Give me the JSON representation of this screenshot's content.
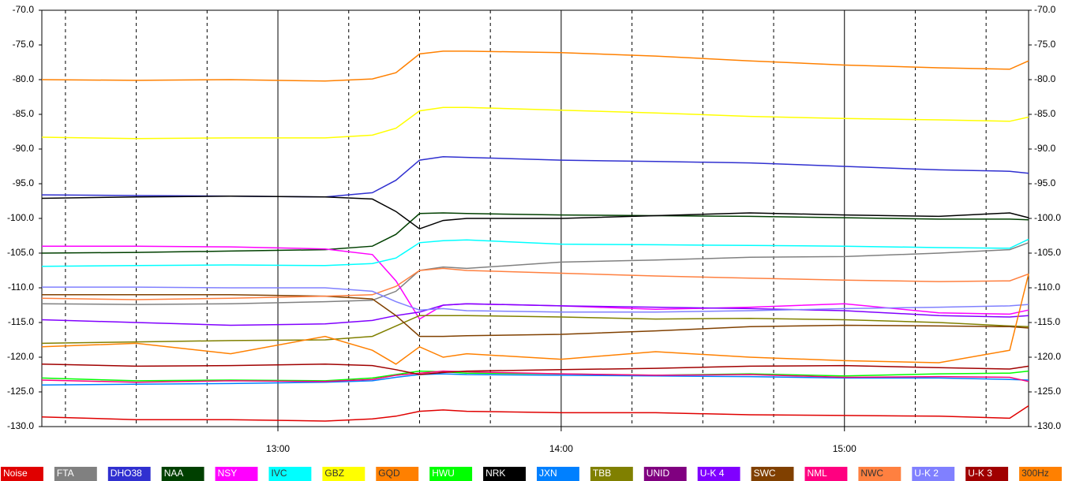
{
  "chart_data": {
    "type": "line",
    "x": [
      "12:10",
      "12:30",
      "12:50",
      "13:10",
      "13:20",
      "13:25",
      "13:30",
      "13:35",
      "13:40",
      "14:00",
      "14:20",
      "14:40",
      "15:00",
      "15:20",
      "15:35",
      "15:39"
    ],
    "xlim": [
      "12:10",
      "15:39"
    ],
    "xticks": [
      "13:00",
      "14:00",
      "15:00"
    ],
    "minor_xticks": [
      "12:15",
      "12:30",
      "12:45",
      "13:15",
      "13:30",
      "13:45",
      "14:15",
      "14:30",
      "14:45",
      "15:15",
      "15:30"
    ],
    "ylim": [
      -70,
      -130
    ],
    "yticks": [
      {
        "value": -70,
        "label": "-70.0"
      },
      {
        "value": -75,
        "label": "-75.0"
      },
      {
        "value": -80,
        "label": "-80.0"
      },
      {
        "value": -85,
        "label": "-85.0"
      },
      {
        "value": -90,
        "label": "-90.0"
      },
      {
        "value": -95,
        "label": "-95.0"
      },
      {
        "value": -100,
        "label": "-100.0"
      },
      {
        "value": -105,
        "label": "-105.0"
      },
      {
        "value": -110,
        "label": "-110.0"
      },
      {
        "value": -115,
        "label": "-115.0"
      },
      {
        "value": -120,
        "label": "-120.0"
      },
      {
        "value": -125,
        "label": "-125.0"
      },
      {
        "value": -130,
        "label": "-130.0"
      }
    ],
    "series": [
      {
        "name": "Noise",
        "color": "#e00000",
        "values": [
          -128.6,
          -129.0,
          -129.0,
          -129.2,
          -128.9,
          -128.5,
          -127.8,
          -127.6,
          -127.8,
          -128.0,
          -128.0,
          -128.3,
          -128.4,
          -128.5,
          -128.8,
          -127.0
        ]
      },
      {
        "name": "FTA",
        "color": "#808080",
        "values": [
          -112.3,
          -112.4,
          -112.3,
          -112.0,
          -111.8,
          -110.5,
          -107.5,
          -107.0,
          -107.2,
          -106.3,
          -106.0,
          -105.6,
          -105.5,
          -105.0,
          -104.5,
          -103.5
        ]
      },
      {
        "name": "DHO38",
        "color": "#3030d0",
        "values": [
          -96.6,
          -96.7,
          -96.8,
          -96.9,
          -96.3,
          -94.5,
          -91.6,
          -91.1,
          -91.2,
          -91.6,
          -91.8,
          -92.0,
          -92.5,
          -93.0,
          -93.2,
          -93.5
        ]
      },
      {
        "name": "NAA",
        "color": "#004000",
        "values": [
          -105.0,
          -104.9,
          -104.7,
          -104.5,
          -104.0,
          -102.3,
          -99.3,
          -99.2,
          -99.3,
          -99.5,
          -99.6,
          -99.7,
          -99.9,
          -100.1,
          -100.1,
          -100.2
        ]
      },
      {
        "name": "NSY",
        "color": "#ff00ff",
        "values": [
          -104.0,
          -104.0,
          -104.1,
          -104.4,
          -105.2,
          -109.0,
          -114.5,
          -112.5,
          -112.3,
          -112.6,
          -113.1,
          -112.8,
          -112.3,
          -113.6,
          -113.8,
          -113.2
        ]
      },
      {
        "name": "IVC",
        "color": "#00ffff",
        "values": [
          -106.9,
          -106.8,
          -106.7,
          -106.8,
          -106.5,
          -105.7,
          -103.5,
          -103.2,
          -103.1,
          -103.7,
          -103.8,
          -103.9,
          -104.0,
          -104.2,
          -104.3,
          -103.0
        ]
      },
      {
        "name": "GBZ",
        "color": "#ffff00",
        "values": [
          -88.3,
          -88.5,
          -88.4,
          -88.4,
          -88.0,
          -87.0,
          -84.5,
          -84.0,
          -84.0,
          -84.4,
          -84.8,
          -85.3,
          -85.6,
          -85.8,
          -86.0,
          -85.4
        ]
      },
      {
        "name": "GQD",
        "color": "#ff8000",
        "values": [
          -80.0,
          -80.1,
          -80.0,
          -80.2,
          -79.9,
          -79.0,
          -76.3,
          -75.9,
          -75.9,
          -76.1,
          -76.6,
          -77.3,
          -77.9,
          -78.3,
          -78.5,
          -77.3
        ]
      },
      {
        "name": "HWU",
        "color": "#00ff00",
        "values": [
          -123.0,
          -123.4,
          -123.3,
          -123.4,
          -123.0,
          -122.5,
          -122.0,
          -122.1,
          -122.3,
          -122.4,
          -122.6,
          -122.4,
          -122.7,
          -122.4,
          -122.3,
          -122.0
        ]
      },
      {
        "name": "NRK",
        "color": "#000000",
        "values": [
          -97.1,
          -96.9,
          -96.8,
          -96.9,
          -97.2,
          -99.0,
          -101.5,
          -100.3,
          -100.0,
          -100.0,
          -99.6,
          -99.2,
          -99.5,
          -99.7,
          -99.2,
          -99.9
        ]
      },
      {
        "name": "JXN",
        "color": "#0080ff",
        "values": [
          -124.0,
          -123.9,
          -123.8,
          -123.6,
          -123.4,
          -122.9,
          -122.5,
          -122.4,
          -122.5,
          -122.6,
          -122.7,
          -122.8,
          -123.0,
          -123.0,
          -123.2,
          -123.3
        ]
      },
      {
        "name": "TBB",
        "color": "#808000",
        "values": [
          -118.0,
          -117.8,
          -117.6,
          -117.5,
          -117.0,
          -115.5,
          -114.0,
          -114.0,
          -114.0,
          -114.2,
          -114.5,
          -114.4,
          -114.6,
          -115.0,
          -115.5,
          -115.6
        ]
      },
      {
        "name": "UNID",
        "color": "#800080",
        "values": [
          null,
          null,
          null,
          null,
          null,
          null,
          null,
          null,
          null,
          null,
          null,
          null,
          null,
          null,
          null,
          null
        ]
      },
      {
        "name": "U-K 4",
        "color": "#8000ff",
        "values": [
          -114.6,
          -115.0,
          -115.4,
          -115.2,
          -114.7,
          -114.0,
          -113.5,
          -112.5,
          -112.3,
          -112.6,
          -112.8,
          -113.0,
          -113.3,
          -114.0,
          -114.2,
          -114.0
        ]
      },
      {
        "name": "SWC",
        "color": "#804000",
        "values": [
          -111.0,
          -111.0,
          -111.0,
          -111.2,
          -111.6,
          -114.0,
          -117.0,
          -117.0,
          -116.9,
          -116.7,
          -116.2,
          -115.6,
          -115.4,
          -115.5,
          -115.6,
          -115.8
        ]
      },
      {
        "name": "NML",
        "color": "#ff0080",
        "values": [
          -123.3,
          -123.6,
          -123.4,
          -123.5,
          -123.2,
          -122.6,
          -122.3,
          -122.0,
          -122.1,
          -122.4,
          -122.6,
          -122.5,
          -122.9,
          -122.8,
          -122.9,
          -123.5
        ]
      },
      {
        "name": "NWC",
        "color": "#ff8040",
        "values": [
          -111.5,
          -111.7,
          -111.5,
          -111.2,
          -111.0,
          -109.8,
          -107.5,
          -107.2,
          -107.5,
          -107.9,
          -108.3,
          -108.6,
          -108.9,
          -109.1,
          -109.0,
          -108.0
        ]
      },
      {
        "name": "U-K 2",
        "color": "#8080ff",
        "values": [
          -109.9,
          -109.9,
          -110.0,
          -110.0,
          -110.5,
          -112.0,
          -113.2,
          -113.0,
          -113.3,
          -113.5,
          -113.5,
          -113.3,
          -113.0,
          -112.8,
          -112.6,
          -112.4
        ]
      },
      {
        "name": "U-K 3",
        "color": "#a00000",
        "values": [
          -121.0,
          -121.3,
          -121.2,
          -121.0,
          -121.2,
          -121.8,
          -122.5,
          -122.2,
          -122.0,
          -121.8,
          -121.6,
          -121.3,
          -121.2,
          -121.5,
          -121.7,
          -121.3
        ]
      },
      {
        "name": "300Hz",
        "color": "#ff8000",
        "values": [
          -118.5,
          -118.0,
          -119.5,
          -117.0,
          -119.0,
          -121.0,
          -118.5,
          -120.0,
          -119.5,
          -120.3,
          -119.2,
          -120.0,
          -120.5,
          -120.8,
          -119.0,
          -108.0
        ]
      }
    ]
  }
}
